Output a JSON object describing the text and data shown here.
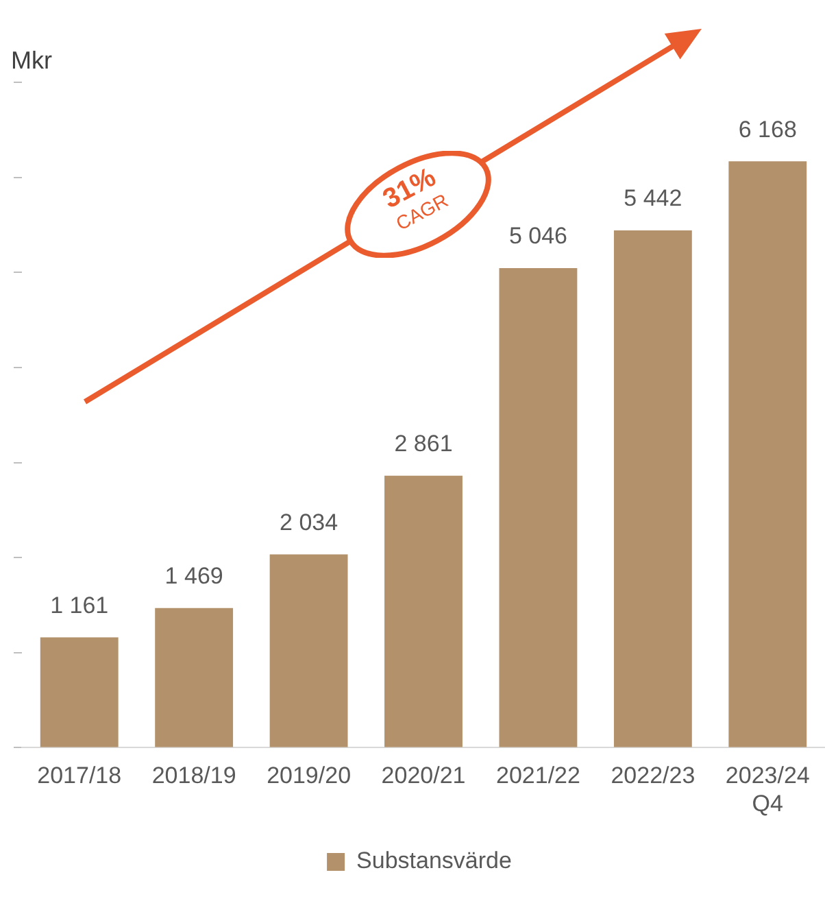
{
  "chart_data": {
    "type": "bar",
    "ylabel": "Mkr",
    "categories": [
      "2017/18",
      "2018/19",
      "2019/20",
      "2020/21",
      "2021/22",
      "2022/23",
      "2023/24 Q4"
    ],
    "series": [
      {
        "name": "Substansvärde",
        "color": "#b3916a",
        "values": [
          1161,
          1469,
          2034,
          2861,
          5046,
          5442,
          6168
        ]
      }
    ],
    "data_labels": true,
    "tick_labels": "x",
    "grid": false,
    "legend": "bottom",
    "annotations": [
      "31%",
      "CAGR"
    ]
  }
}
